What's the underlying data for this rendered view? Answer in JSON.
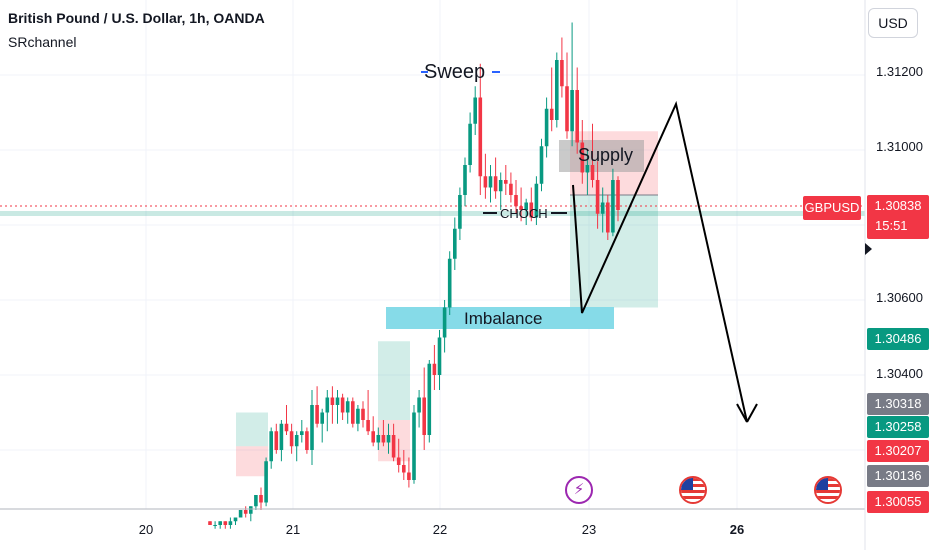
{
  "legend": {
    "title": "British Pound / U.S. Dollar, 1h, OANDA",
    "indicator": "SRchannel"
  },
  "currency_button": "USD",
  "symbol_tag": "GBPUSD",
  "current_price": {
    "price": "1.30838",
    "countdown": "15:51"
  },
  "price_tags": [
    {
      "label": "1.30486",
      "color": "#089981"
    },
    {
      "label": "1.30318",
      "color": "#787b86"
    },
    {
      "label": "1.30258",
      "color": "#089981"
    },
    {
      "label": "1.30207",
      "color": "#f23645"
    },
    {
      "label": "1.30136",
      "color": "#787b86"
    },
    {
      "label": "1.30055",
      "color": "#f23645"
    }
  ],
  "annotations": {
    "sweep": "Sweep",
    "choch": "CHOCH",
    "supply": "Supply",
    "imbalance": "Imbalance"
  },
  "events": [
    {
      "icon": "lightning-icon"
    },
    {
      "icon": "us-flag-icon"
    },
    {
      "icon": "us-flag-icon"
    }
  ],
  "colors": {
    "up": "#089981",
    "down": "#f23645",
    "imbalance": "#86dbe8",
    "supply_box": "#9e9e9e"
  },
  "chart_data": {
    "type": "candlestick",
    "title": "British Pound / U.S. Dollar, 1h, OANDA",
    "y_ticks": [
      "1.31200",
      "1.31000",
      "1.30600",
      "1.30400"
    ],
    "x_ticks": [
      {
        "label": "20",
        "bold": false
      },
      {
        "label": "21",
        "bold": false
      },
      {
        "label": "22",
        "bold": false
      },
      {
        "label": "23",
        "bold": false
      },
      {
        "label": "26",
        "bold": true
      }
    ],
    "ylim": [
      1.2996,
      1.3144
    ],
    "grid": true,
    "candles": [
      [
        1.3001,
        1.3001,
        1.3,
        1.3
      ],
      [
        1.3,
        1.3001,
        1.2999,
        1.3
      ],
      [
        1.3,
        1.3001,
        1.2999,
        1.3001
      ],
      [
        1.3001,
        1.3001,
        1.2999,
        1.3
      ],
      [
        1.3,
        1.3002,
        1.2999,
        1.3001
      ],
      [
        1.3001,
        1.3002,
        1.3,
        1.3002
      ],
      [
        1.3002,
        1.3004,
        1.3002,
        1.3004
      ],
      [
        1.3004,
        1.3005,
        1.3002,
        1.3003
      ],
      [
        1.3003,
        1.3005,
        1.3001,
        1.3005
      ],
      [
        1.3005,
        1.3008,
        1.3004,
        1.3008
      ],
      [
        1.3008,
        1.301,
        1.3004,
        1.3006
      ],
      [
        1.3006,
        1.3018,
        1.3005,
        1.3017
      ],
      [
        1.3017,
        1.3026,
        1.3015,
        1.3025
      ],
      [
        1.3025,
        1.3027,
        1.3019,
        1.302
      ],
      [
        1.302,
        1.3028,
        1.3017,
        1.3027
      ],
      [
        1.3027,
        1.3032,
        1.3024,
        1.3025
      ],
      [
        1.3025,
        1.3027,
        1.3019,
        1.3021
      ],
      [
        1.3021,
        1.3025,
        1.3017,
        1.3024
      ],
      [
        1.3024,
        1.3028,
        1.3022,
        1.3025
      ],
      [
        1.3025,
        1.3026,
        1.3019,
        1.302
      ],
      [
        1.302,
        1.3036,
        1.3016,
        1.3032
      ],
      [
        1.3032,
        1.3037,
        1.3026,
        1.3027
      ],
      [
        1.3027,
        1.3031,
        1.3022,
        1.303
      ],
      [
        1.303,
        1.3036,
        1.3025,
        1.3034
      ],
      [
        1.3034,
        1.3037,
        1.3027,
        1.3032
      ],
      [
        1.3032,
        1.3036,
        1.3027,
        1.3034
      ],
      [
        1.3034,
        1.3035,
        1.3028,
        1.303
      ],
      [
        1.303,
        1.3034,
        1.3027,
        1.3033
      ],
      [
        1.3033,
        1.3034,
        1.3026,
        1.3027
      ],
      [
        1.3027,
        1.3032,
        1.3025,
        1.3031
      ],
      [
        1.3031,
        1.3033,
        1.3026,
        1.3028
      ],
      [
        1.3028,
        1.3036,
        1.3024,
        1.3025
      ],
      [
        1.3025,
        1.3029,
        1.3021,
        1.3022
      ],
      [
        1.3022,
        1.3026,
        1.302,
        1.3024
      ],
      [
        1.3024,
        1.3028,
        1.3021,
        1.3022
      ],
      [
        1.3022,
        1.3027,
        1.3019,
        1.3024
      ],
      [
        1.3024,
        1.3027,
        1.3017,
        1.3018
      ],
      [
        1.3018,
        1.3023,
        1.3014,
        1.3016
      ],
      [
        1.3016,
        1.302,
        1.3012,
        1.3014
      ],
      [
        1.3014,
        1.3018,
        1.301,
        1.3012
      ],
      [
        1.3012,
        1.3032,
        1.3011,
        1.303
      ],
      [
        1.303,
        1.3036,
        1.3026,
        1.3034
      ],
      [
        1.3034,
        1.3042,
        1.302,
        1.3024
      ],
      [
        1.3024,
        1.3044,
        1.3022,
        1.3043
      ],
      [
        1.3043,
        1.3048,
        1.3036,
        1.304
      ],
      [
        1.304,
        1.3052,
        1.3036,
        1.305
      ],
      [
        1.305,
        1.306,
        1.3046,
        1.3058
      ],
      [
        1.3058,
        1.3073,
        1.3056,
        1.3071
      ],
      [
        1.3071,
        1.3082,
        1.3068,
        1.3079
      ],
      [
        1.3079,
        1.309,
        1.3076,
        1.3088
      ],
      [
        1.3088,
        1.3098,
        1.3085,
        1.3096
      ],
      [
        1.3096,
        1.311,
        1.3094,
        1.3107
      ],
      [
        1.3107,
        1.3117,
        1.3104,
        1.3114
      ],
      [
        1.3114,
        1.3123,
        1.3088,
        1.3093
      ],
      [
        1.3093,
        1.3099,
        1.3087,
        1.309
      ],
      [
        1.309,
        1.3096,
        1.3086,
        1.3093
      ],
      [
        1.3093,
        1.3098,
        1.3087,
        1.3089
      ],
      [
        1.3089,
        1.3094,
        1.3084,
        1.3092
      ],
      [
        1.3092,
        1.3096,
        1.3088,
        1.3091
      ],
      [
        1.3091,
        1.3094,
        1.3086,
        1.3088
      ],
      [
        1.3088,
        1.3092,
        1.3083,
        1.3085
      ],
      [
        1.3085,
        1.309,
        1.3081,
        1.3084
      ],
      [
        1.3084,
        1.3087,
        1.308,
        1.3086
      ],
      [
        1.3086,
        1.309,
        1.3081,
        1.3082
      ],
      [
        1.3082,
        1.3093,
        1.308,
        1.3091
      ],
      [
        1.3091,
        1.3103,
        1.3089,
        1.3101
      ],
      [
        1.3101,
        1.3114,
        1.3098,
        1.3111
      ],
      [
        1.3111,
        1.3122,
        1.3105,
        1.3108
      ],
      [
        1.3108,
        1.3126,
        1.3106,
        1.3124
      ],
      [
        1.3124,
        1.313,
        1.3114,
        1.3117
      ],
      [
        1.3117,
        1.3126,
        1.3103,
        1.3105
      ],
      [
        1.3105,
        1.3134,
        1.3101,
        1.3116
      ],
      [
        1.3116,
        1.3122,
        1.3099,
        1.3102
      ],
      [
        1.3102,
        1.3108,
        1.3091,
        1.3094
      ],
      [
        1.3094,
        1.31,
        1.3088,
        1.3096
      ],
      [
        1.3096,
        1.3107,
        1.309,
        1.3092
      ],
      [
        1.3092,
        1.3097,
        1.3079,
        1.3083
      ],
      [
        1.3083,
        1.309,
        1.3078,
        1.3086
      ],
      [
        1.3086,
        1.3088,
        1.3076,
        1.3078
      ],
      [
        1.3078,
        1.3095,
        1.3077,
        1.3092
      ],
      [
        1.3092,
        1.3093,
        1.3081,
        1.3084
      ]
    ]
  }
}
